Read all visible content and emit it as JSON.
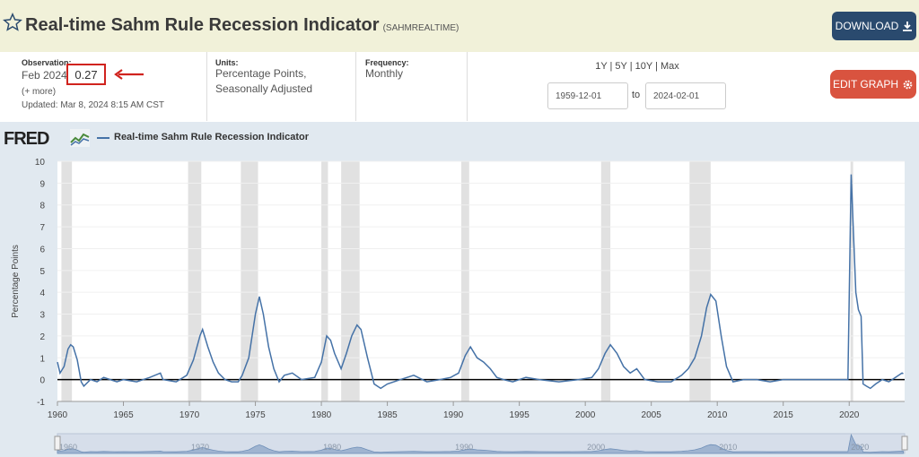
{
  "header": {
    "title": "Real-time Sahm Rule Recession Indicator",
    "series_id": "(SAHMREALTIME)",
    "download_label": "DOWNLOAD"
  },
  "observation": {
    "label": "Observation:",
    "date": "Feb 2024",
    "value": "0.27",
    "more": "(+ more)",
    "updated": "Updated: Mar 8, 2024 8:15 AM CST"
  },
  "units": {
    "label": "Units:",
    "line1": "Percentage Points,",
    "line2": "Seasonally Adjusted"
  },
  "frequency": {
    "label": "Frequency:",
    "value": "Monthly"
  },
  "range": {
    "links": "1Y | 5Y | 10Y | Max",
    "start": "1959-12-01",
    "to": "to",
    "end": "2024-02-01"
  },
  "edit_label": "EDIT GRAPH",
  "logo_text": "FRED",
  "colors": {
    "line": "#4572a7",
    "recession": "#e1e1e1",
    "accent": "#d0231e"
  },
  "chart_data": {
    "type": "line",
    "title": "Real-time Sahm Rule Recession Indicator",
    "ylabel": "Percentage Points",
    "ylim": [
      -1,
      10
    ],
    "yticks": [
      "-1",
      "0",
      "1",
      "2",
      "3",
      "4",
      "5",
      "6",
      "7",
      "8",
      "9",
      "10"
    ],
    "xlim": [
      1960,
      2024.2
    ],
    "xticks": [
      "1960",
      "1965",
      "1970",
      "1975",
      "1980",
      "1985",
      "1990",
      "1995",
      "2000",
      "2005",
      "2010",
      "2015",
      "2020"
    ],
    "navigator_labels": [
      "1960",
      "1970",
      "1980",
      "1990",
      "2000",
      "2010",
      "2020"
    ],
    "recessions": [
      [
        1960.3,
        1961.1
      ],
      [
        1969.9,
        1970.9
      ],
      [
        1973.9,
        1975.2
      ],
      [
        1980.0,
        1980.5
      ],
      [
        1981.5,
        1982.9
      ],
      [
        1990.6,
        1991.2
      ],
      [
        2001.2,
        2001.9
      ],
      [
        2007.9,
        2009.5
      ],
      [
        2020.1,
        2020.3
      ]
    ],
    "series": [
      {
        "name": "Real-time Sahm Rule Recession Indicator",
        "x": [
          1960.0,
          1960.2,
          1960.5,
          1960.8,
          1961.0,
          1961.2,
          1961.5,
          1961.8,
          1962.0,
          1962.5,
          1963.0,
          1963.5,
          1964.0,
          1964.5,
          1965.0,
          1966.0,
          1967.0,
          1967.8,
          1968.0,
          1969.0,
          1969.8,
          1970.3,
          1970.8,
          1971.0,
          1971.4,
          1971.8,
          1972.2,
          1972.7,
          1973.2,
          1973.7,
          1974.0,
          1974.5,
          1975.0,
          1975.3,
          1975.6,
          1976.0,
          1976.4,
          1976.8,
          1977.2,
          1977.8,
          1978.5,
          1979.5,
          1980.0,
          1980.4,
          1980.7,
          1981.0,
          1981.5,
          1981.9,
          1982.3,
          1982.7,
          1983.0,
          1983.5,
          1984.0,
          1984.5,
          1985.0,
          1986.0,
          1987.0,
          1988.0,
          1989.0,
          1989.8,
          1990.4,
          1990.9,
          1991.3,
          1991.8,
          1992.3,
          1992.8,
          1993.3,
          1993.8,
          1994.5,
          1995.5,
          1996.5,
          1998.0,
          1999.5,
          2000.5,
          2001.0,
          2001.5,
          2001.9,
          2002.4,
          2002.9,
          2003.4,
          2003.9,
          2004.5,
          2005.5,
          2006.5,
          2007.3,
          2007.8,
          2008.3,
          2008.8,
          2009.2,
          2009.5,
          2009.9,
          2010.3,
          2010.7,
          2011.2,
          2012.0,
          2013.0,
          2014.0,
          2015.0,
          2016.0,
          2017.0,
          2018.0,
          2019.0,
          2019.9,
          2020.15,
          2020.3,
          2020.5,
          2020.7,
          2020.9,
          2021.05,
          2021.3,
          2021.6,
          2022.0,
          2022.5,
          2023.0,
          2023.5,
          2024.0,
          2024.1
        ],
        "y": [
          0.8,
          0.3,
          0.6,
          1.4,
          1.6,
          1.5,
          0.9,
          -0.1,
          -0.3,
          0.0,
          -0.1,
          0.1,
          0.0,
          -0.1,
          0.0,
          -0.1,
          0.1,
          0.3,
          0.0,
          -0.1,
          0.2,
          0.9,
          2.0,
          2.3,
          1.5,
          0.8,
          0.3,
          0.0,
          -0.1,
          -0.1,
          0.2,
          1.0,
          3.0,
          3.8,
          3.0,
          1.5,
          0.5,
          -0.1,
          0.2,
          0.3,
          0.0,
          0.1,
          0.8,
          2.0,
          1.8,
          1.2,
          0.5,
          1.2,
          2.0,
          2.5,
          2.3,
          1.0,
          -0.2,
          -0.4,
          -0.2,
          0.0,
          0.2,
          -0.1,
          0.0,
          0.1,
          0.3,
          1.1,
          1.5,
          1.0,
          0.8,
          0.5,
          0.1,
          0.0,
          -0.1,
          0.1,
          0.0,
          -0.1,
          0.0,
          0.1,
          0.5,
          1.2,
          1.6,
          1.2,
          0.6,
          0.3,
          0.5,
          0.0,
          -0.1,
          -0.1,
          0.2,
          0.5,
          1.0,
          2.0,
          3.3,
          3.9,
          3.6,
          2.0,
          0.6,
          -0.1,
          0.0,
          0.0,
          -0.1,
          0.0,
          0.0,
          0.0,
          0.0,
          0.0,
          0.0,
          9.4,
          7.0,
          4.0,
          3.2,
          2.9,
          -0.2,
          -0.3,
          -0.4,
          -0.2,
          0.0,
          -0.1,
          0.1,
          0.3,
          0.27
        ]
      }
    ]
  }
}
